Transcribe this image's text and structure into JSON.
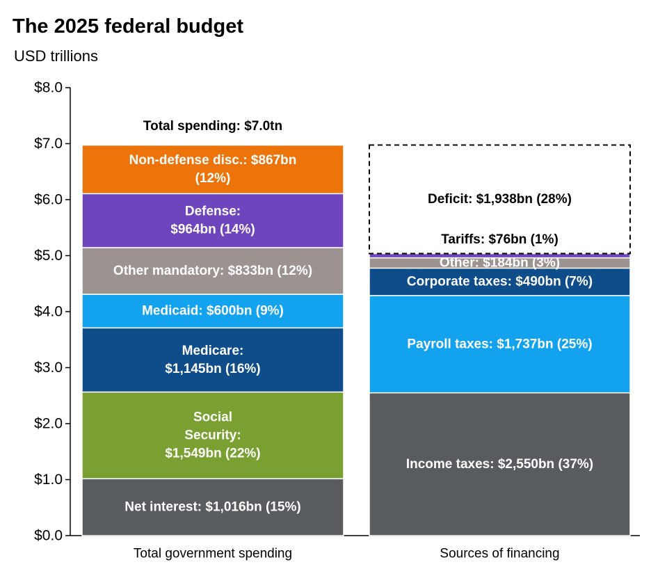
{
  "chart_data": {
    "type": "bar",
    "stacked": true,
    "title": "The 2025 federal budget",
    "subtitle": "USD trillions",
    "ylim": [
      0,
      8
    ],
    "y_ticks": [
      "$0.0",
      "$1.0",
      "$2.0",
      "$3.0",
      "$4.0",
      "$5.0",
      "$6.0",
      "$7.0",
      "$8.0"
    ],
    "grid": false,
    "categories": [
      "Total government spending",
      "Sources of financing"
    ],
    "stacks": [
      {
        "category": "Total government spending",
        "total_label": "Total spending: $7.0tn",
        "segments": [
          {
            "value": 1.016,
            "color": "#595c5f",
            "label": [
              "Net interest: $1,016bn (15%)"
            ]
          },
          {
            "value": 1.549,
            "color": "#7ba032",
            "label": [
              "Social",
              "Security:",
              "$1,549bn (22%)"
            ]
          },
          {
            "value": 1.145,
            "color": "#0f4c8a",
            "label": [
              "Medicare:",
              "$1,145bn (16%)"
            ]
          },
          {
            "value": 0.6,
            "color": "#13a3ee",
            "label": [
              "Medicaid: $600bn (9%)"
            ]
          },
          {
            "value": 0.833,
            "color": "#9c9290",
            "label": [
              "Other mandatory: $833bn (12%)"
            ]
          },
          {
            "value": 0.964,
            "color": "#6e45bc",
            "label": [
              "Defense:",
              "$964bn (14%)"
            ]
          },
          {
            "value": 0.867,
            "color": "#ec740b",
            "label": [
              "Non-defense disc.: $867bn",
              "(12%)"
            ]
          }
        ]
      },
      {
        "category": "Sources of financing",
        "segments": [
          {
            "value": 2.55,
            "color": "#595c5f",
            "label": [
              "Income taxes: $2,550bn (37%)"
            ]
          },
          {
            "value": 1.737,
            "color": "#13a3ee",
            "label": [
              "Payroll taxes: $1,737bn (25%)"
            ]
          },
          {
            "value": 0.49,
            "color": "#0f4c8a",
            "label": [
              "Corporate taxes: $490bn (7%)"
            ]
          },
          {
            "value": 0.184,
            "color": "#9c9290",
            "label": [
              "Other: $184bn (3%)"
            ]
          },
          {
            "value": 0.076,
            "color": "#6e45bc",
            "label": []
          },
          {
            "value": 1.938,
            "color": "none",
            "dashed": true,
            "label": [
              "Deficit: $1,938bn (28%)"
            ]
          }
        ],
        "callouts": [
          {
            "text": "Tariffs: $76bn (1%)"
          }
        ]
      }
    ]
  }
}
